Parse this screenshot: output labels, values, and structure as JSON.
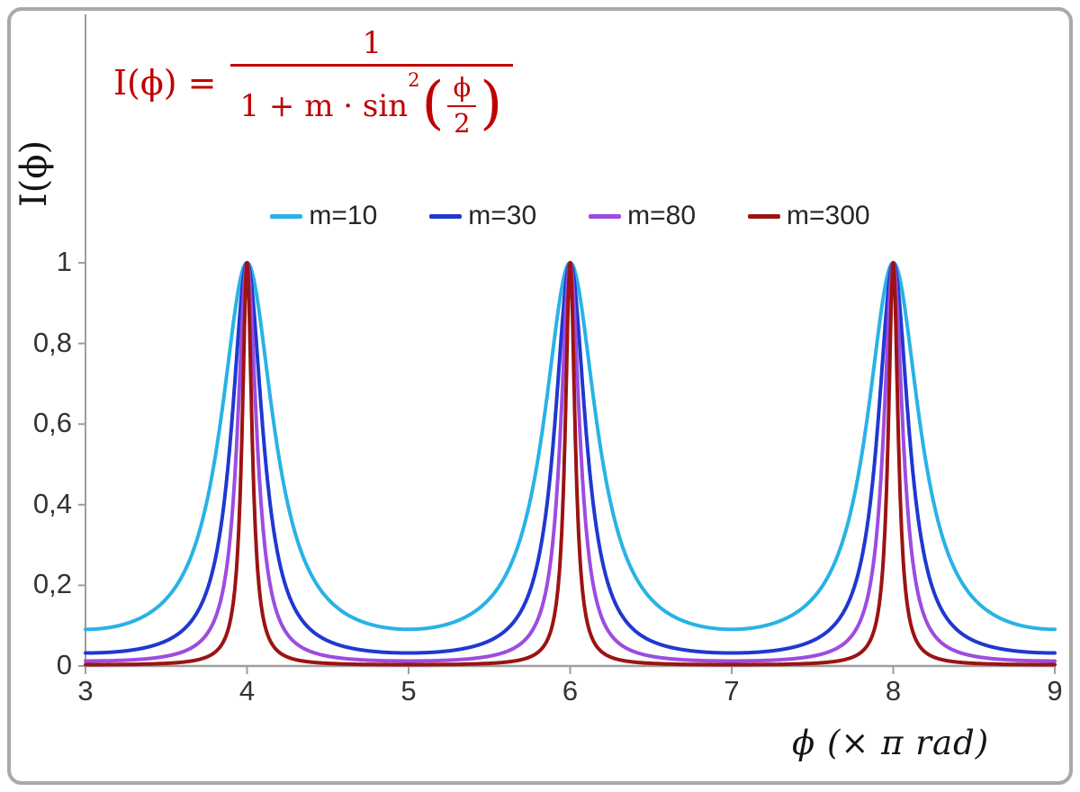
{
  "figure": {
    "background": "#ffffff",
    "border_color": "#a9a9a9"
  },
  "formula": {
    "color": "#c00000",
    "lhs": "I(ϕ) =",
    "numerator": "1",
    "den_text": "1 + m · sin",
    "den_sup": "2",
    "lparen": "(",
    "rparen": ")",
    "inner_num": "ϕ",
    "inner_den": "2"
  },
  "legend": {
    "items": [
      {
        "label": "m=10",
        "color": "#29b2e5"
      },
      {
        "label": "m=30",
        "color": "#2038d0"
      },
      {
        "label": "m=80",
        "color": "#9d4ce0"
      },
      {
        "label": "m=300",
        "color": "#9c1313"
      }
    ]
  },
  "axes": {
    "y_label": "I(ϕ)",
    "x_label": "ϕ  (× π rad)",
    "x_tick_labels": [
      "3",
      "4",
      "5",
      "6",
      "7",
      "8",
      "9"
    ],
    "y_tick_labels": [
      "0",
      "0,2",
      "0,4",
      "0,6",
      "0,8",
      "1"
    ],
    "axis_color": "#9e9e9e",
    "tick_text_color": "#333333"
  },
  "chart_data": {
    "type": "line",
    "title": "",
    "function": "I(phi) = 1 / (1 + m * sin^2(phi/2))",
    "xlabel": "ϕ (× π rad)",
    "ylabel": "I(ϕ)",
    "x_unit": "multiples of π rad",
    "x_range": [
      3,
      9
    ],
    "ylim": [
      0,
      1
    ],
    "x_ticks": [
      3,
      4,
      5,
      6,
      7,
      8,
      9
    ],
    "y_ticks": [
      0,
      0.2,
      0.4,
      0.6,
      0.8,
      1
    ],
    "grid": false,
    "legend_position": "top-center",
    "peaks_at_x": [
      4,
      6,
      8
    ],
    "peak_value": 1,
    "series": [
      {
        "name": "m=10",
        "m": 10,
        "color": "#29b2e5",
        "min_value": 0.0909
      },
      {
        "name": "m=30",
        "m": 30,
        "color": "#2038d0",
        "min_value": 0.0323
      },
      {
        "name": "m=80",
        "m": 80,
        "color": "#9d4ce0",
        "min_value": 0.0123
      },
      {
        "name": "m=300",
        "m": 300,
        "color": "#9c1313",
        "min_value": 0.0033
      }
    ]
  }
}
